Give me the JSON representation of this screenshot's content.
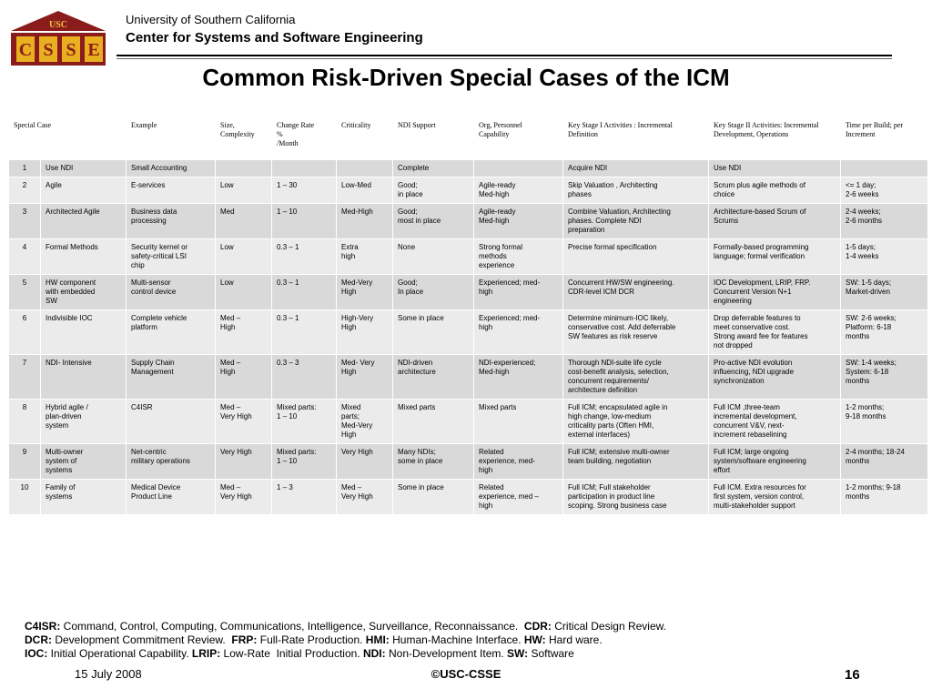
{
  "header": {
    "logo_text": "USC",
    "logo_letters": [
      "C",
      "S",
      "S",
      "E"
    ],
    "university": "University of Southern California",
    "center": "Center for Systems and Software Engineering"
  },
  "title": "Common Risk-Driven Special Cases of the ICM",
  "columns": [
    "Special Case",
    "Example",
    "Size,\nComplexity",
    "Change Rate\n%\n/Month",
    "Criticality",
    "NDI Support",
    "Org, Personnel\nCapability",
    "Key Stage I Activities : Incremental\nDefinition",
    "Key Stage II Activities: Incremental\nDevelopment, Operations",
    "Time per Build;  per\nIncrement"
  ],
  "rows": [
    [
      "1",
      "Use NDI",
      "Small Accounting",
      "",
      "",
      "",
      "Complete",
      "",
      "Acquire NDI",
      "Use NDI",
      ""
    ],
    [
      "2",
      "Agile",
      "E-services",
      "Low",
      "1 – 30",
      "Low-Med",
      "Good;\nin place",
      "Agile-ready\nMed-high",
      "Skip Valuation , Architecting\nphases",
      "Scrum plus agile methods of\nchoice",
      "<= 1 day;\n2-6 weeks"
    ],
    [
      "3",
      "Architected Agile",
      "Business data\nprocessing",
      "Med",
      "1 – 10",
      "Med-High",
      "Good;\nmost in place",
      "Agile-ready\nMed-high",
      "Combine Valuation, Architecting\nphases. Complete NDI\npreparation",
      "Architecture-based Scrum of\nScrums",
      "2-4 weeks;\n2-6 months"
    ],
    [
      "4",
      "Formal Methods",
      "Security kernel or\nsafety-critical LSI\nchip",
      "Low",
      "0.3 – 1",
      "Extra\nhigh",
      "None",
      "Strong formal\nmethods\nexperience",
      "Precise formal specification",
      "Formally-based programming\nlanguage; formal verification",
      "1-5 days;\n1-4 weeks"
    ],
    [
      "5",
      "HW component\nwith embedded\nSW",
      "Multi-sensor\ncontrol device",
      "Low",
      "0.3 – 1",
      "Med-Very\nHigh",
      "Good;\nIn place",
      "Experienced; med-\nhigh",
      "Concurrent HW/SW engineering.\nCDR-level ICM DCR",
      "IOC Development, LRIP, FRP.\nConcurrent Version  N+1\nengineering",
      "SW: 1-5 days;\nMarket-driven"
    ],
    [
      "6",
      "Indivisible IOC",
      "Complete vehicle\nplatform",
      "Med –\nHigh",
      "0.3 – 1",
      "High-Very\nHigh",
      "Some in place",
      "Experienced; med-\nhigh",
      "Determine minimum-IOC likely,\nconservative cost. Add deferrable\nSW features as risk reserve",
      "Drop deferrable features to\nmeet conservative cost.\nStrong award fee for features\nnot dropped",
      "SW:  2-6 weeks;\nPlatform: 6-18\nmonths"
    ],
    [
      "7",
      "NDI- Intensive",
      "Supply Chain\nManagement",
      "Med –\nHigh",
      "0.3 – 3",
      "Med- Very\nHigh",
      "NDI-driven\narchitecture",
      "NDI-experienced;\nMed-high",
      "Thorough NDI-suite life cycle\ncost-benefit analysis, selection,\nconcurrent requirements/\narchitecture definition",
      "Pro-active NDI evolution\ninfluencing, NDI upgrade\nsynchronization",
      "SW: 1-4 weeks;\nSystem: 6-18\nmonths"
    ],
    [
      "8",
      "Hybrid agile /\nplan-driven\nsystem",
      "C4ISR",
      "Med –\nVery High",
      "Mixed parts:\n1 – 10",
      "Mixed\nparts;\nMed-Very\nHigh",
      "Mixed parts",
      "Mixed parts",
      "Full ICM; encapsulated agile in\nhigh change, low-medium\ncriticality parts (Often HMI,\nexternal interfaces)",
      "Full ICM ,three-team\nincremental development,\nconcurrent V&V, next-\nincrement rebaselining",
      "1-2 months;\n9-18 months"
    ],
    [
      "9",
      "Multi-owner\nsystem of\nsystems",
      "Net-centric\nmilitary operations",
      "Very High",
      "Mixed parts:\n1 – 10",
      "Very High",
      "Many NDIs;\nsome in place",
      "Related\nexperience, med-\nhigh",
      "Full ICM; extensive multi-owner\nteam building, negotiation",
      "Full ICM; large ongoing\nsystem/software engineering\neffort",
      "2-4 months; 18-24\nmonths"
    ],
    [
      "10",
      "Family  of\nsystems",
      "Medical Device\nProduct Line",
      "Med –\nVery High",
      "1 – 3",
      "Med –\nVery High",
      "Some in place",
      "Related\nexperience, med –\nhigh",
      "Full ICM; Full stakeholder\nparticipation in product line\nscoping. Strong business case",
      "Full ICM. Extra resources for\nfirst system, version control,\nmulti-stakeholder support",
      "1-2 months;  9-18\nmonths"
    ]
  ],
  "notes": {
    "line1": [
      {
        "abbr": "C4ISR:",
        "def": " Command, Control, Computing, Communications, Intelligence, Surveillance, Reconnaissance.  "
      },
      {
        "abbr": "CDR:",
        "def": " Critical Design Review."
      }
    ],
    "line2": [
      {
        "abbr": "DCR:",
        "def": " Development Commitment Review.  "
      },
      {
        "abbr": "FRP:",
        "def": " Full-Rate Production. "
      },
      {
        "abbr": "HMI:",
        "def": " Human-Machine Interface. "
      },
      {
        "abbr": "HW:",
        "def": " Hard ware."
      }
    ],
    "line3": [
      {
        "abbr": "IOC:",
        "def": " Initial Operational Capability. "
      },
      {
        "abbr": "LRIP:",
        "def": " Low-Rate  Initial Production. "
      },
      {
        "abbr": "NDI:",
        "def": " Non-Development Item. "
      },
      {
        "abbr": "SW:",
        "def": " Software"
      }
    ]
  },
  "footer": {
    "date": "15 July 2008",
    "copyright": "©USC-CSSE",
    "page": "16"
  },
  "colors": {
    "logo_red": "#8b1c1c",
    "logo_gold": "#e8b020",
    "row_dark": "#d9d9d9",
    "row_light": "#ebebeb"
  }
}
